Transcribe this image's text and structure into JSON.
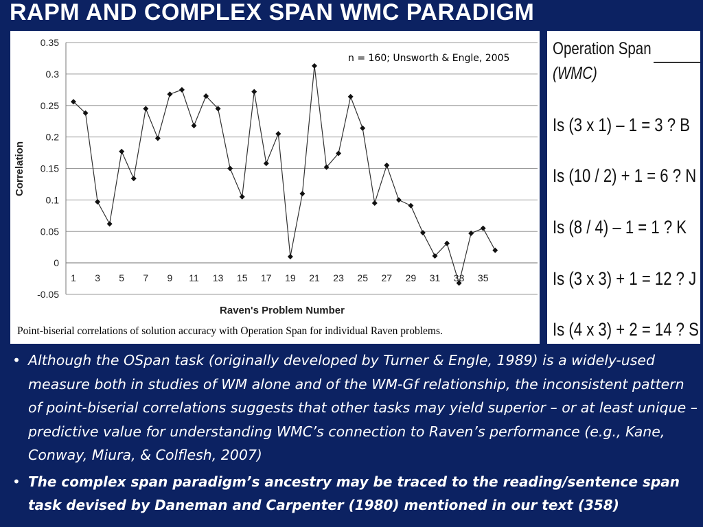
{
  "slide": {
    "title": "RAPM AND COMPLEX SPAN WMC PARADIGM"
  },
  "chart_note": "n = 160; Unsworth & Engle, 2005",
  "chart_caption": "Point-biserial correlations of solution accuracy with Operation Span for individual Raven problems.",
  "chart_data": {
    "type": "line",
    "xlabel": "Raven's Problem Number",
    "ylabel": "Correlation",
    "x": [
      1,
      2,
      3,
      4,
      5,
      6,
      7,
      8,
      9,
      10,
      11,
      12,
      13,
      14,
      15,
      16,
      17,
      18,
      19,
      20,
      21,
      22,
      23,
      24,
      25,
      26,
      27,
      28,
      29,
      30,
      31,
      32,
      33,
      34,
      35,
      36
    ],
    "series": [
      {
        "values": [
          0.256,
          0.238,
          0.097,
          0.062,
          0.177,
          0.134,
          0.245,
          0.198,
          0.268,
          0.275,
          0.218,
          0.265,
          0.245,
          0.15,
          0.105,
          0.272,
          0.158,
          0.205,
          0.01,
          0.11,
          0.313,
          0.152,
          0.174,
          0.264,
          0.214,
          0.095,
          0.155,
          0.1,
          0.091,
          0.048,
          0.011,
          0.031,
          -0.032,
          0.047,
          0.055,
          0.02
        ]
      }
    ],
    "x_tick_labels": [
      "1",
      "3",
      "5",
      "7",
      "9",
      "11",
      "13",
      "15",
      "17",
      "19",
      "21",
      "23",
      "25",
      "27",
      "29",
      "31",
      "33",
      "35"
    ],
    "y_tick_labels": [
      "0.35",
      "0.3",
      "0.25",
      "0.2",
      "0.15",
      "0.1",
      "0.05",
      "0",
      "-0.05"
    ],
    "ylim": [
      -0.05,
      0.35
    ],
    "grid": true,
    "marker": "diamond",
    "line_color": "#333333"
  },
  "ospan": {
    "title": "Operation Span",
    "subtitle": "(WMC)",
    "items": [
      "Is (3 x 1) – 1 = 3 ? B",
      "Is (10 / 2) + 1 = 6 ? N",
      "Is (8 / 4) – 1 = 1 ? K",
      "Is (3 x 3) + 1 = 12 ? J",
      "Is (4 x 3) + 2 = 14 ? S"
    ]
  },
  "bullets": [
    {
      "marker": "•",
      "text": "Although the OSpan task (originally developed by Turner & Engle, 1989) is a widely-used measure both in studies of WM alone and of the WM-Gf relationship, the inconsistent pattern of point-biserial correlations  suggests that other tasks may yield superior – or at least unique – predictive value for understanding WMC’s connection to Raven’s performance (e.g., Kane, Conway, Miura, & Colflesh, 2007)"
    },
    {
      "marker": "•",
      "text": "The complex span paradigm’s ancestry may be traced to the reading/sentence span task devised by Daneman and Carpenter (1980) mentioned in our text (358)"
    }
  ]
}
